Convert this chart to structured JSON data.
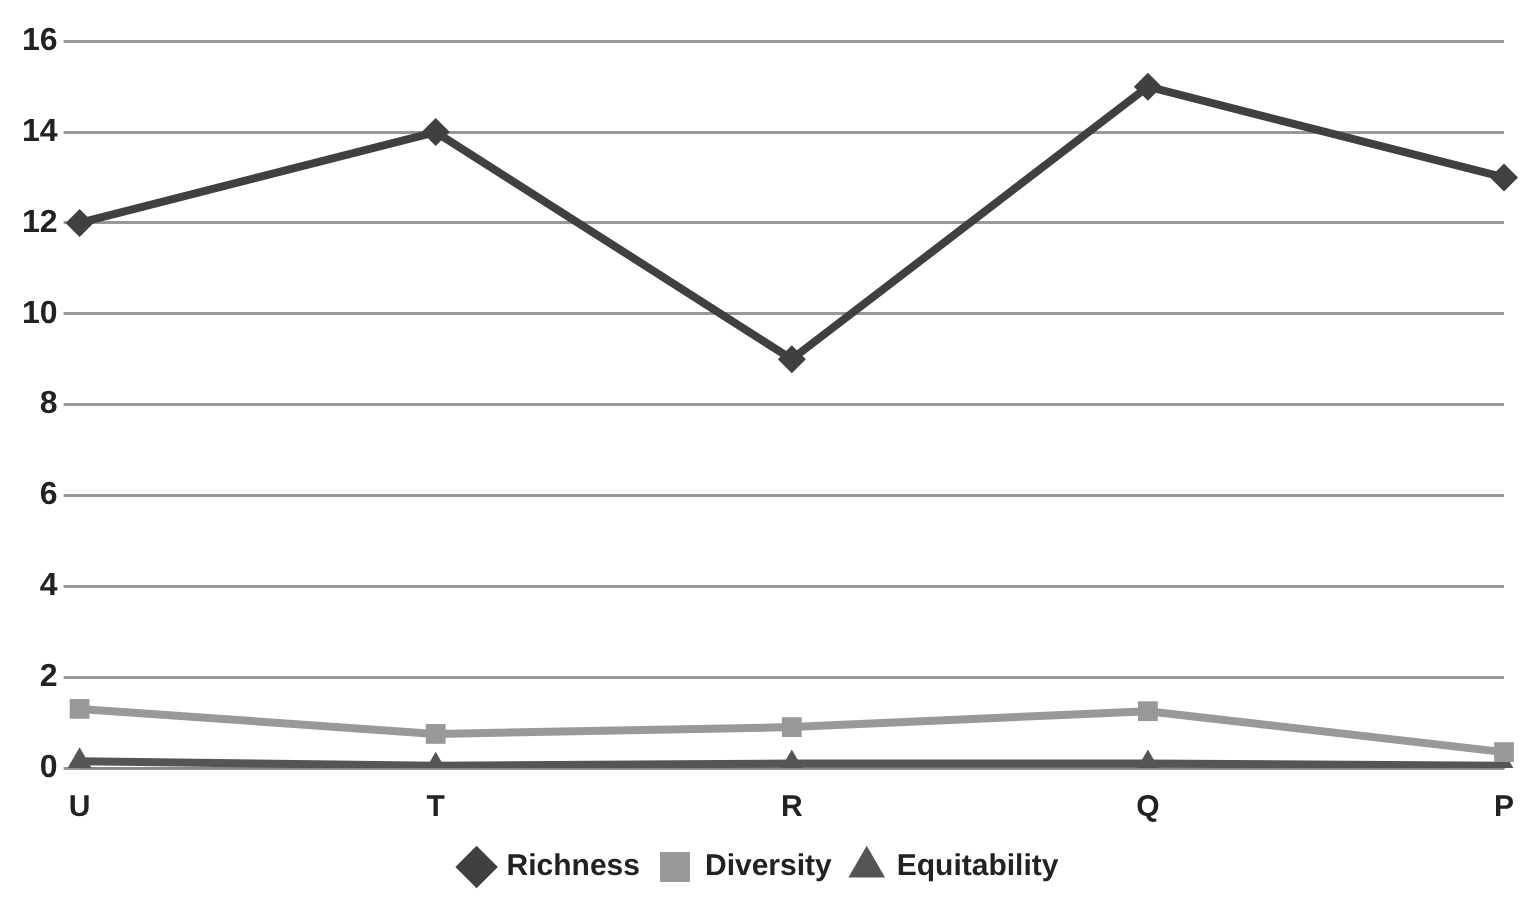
{
  "chart_data": {
    "type": "line",
    "categories": [
      "U",
      "T",
      "R",
      "Q",
      "P"
    ],
    "series": [
      {
        "name": "Richness",
        "color": "#404040",
        "marker": "diamond",
        "values": [
          12,
          14,
          9,
          15,
          13
        ]
      },
      {
        "name": "Diversity",
        "color": "#999999",
        "marker": "square",
        "values": [
          1.3,
          0.75,
          0.9,
          1.25,
          0.35
        ]
      },
      {
        "name": "Equitability",
        "color": "#555555",
        "marker": "triangle",
        "values": [
          0.15,
          0.05,
          0.1,
          0.1,
          0.05
        ]
      }
    ],
    "ylim": [
      0,
      16
    ],
    "yticks": [
      0,
      2,
      4,
      6,
      8,
      10,
      12,
      14,
      16
    ],
    "grid": "y",
    "legend": "bottom"
  }
}
